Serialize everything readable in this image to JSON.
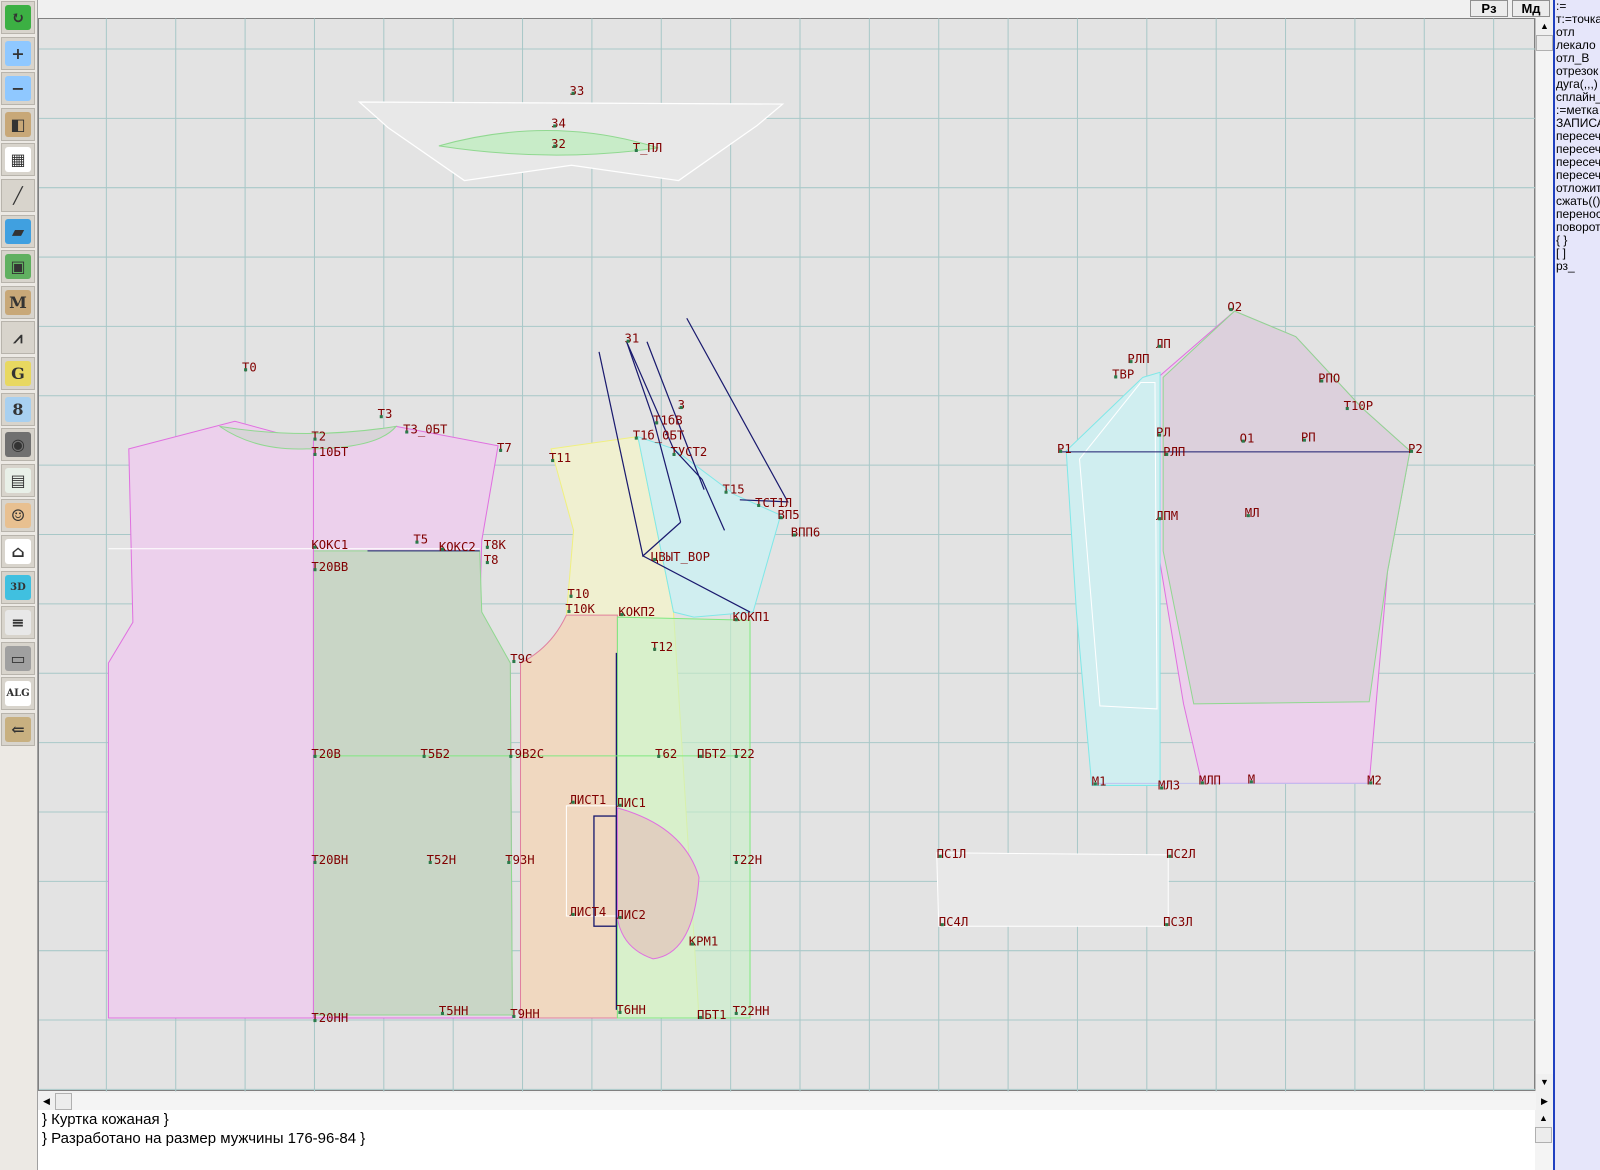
{
  "toolbar": {
    "items": [
      {
        "icon": "refresh-icon",
        "glyph": "↻",
        "color": "#3cb043"
      },
      {
        "icon": "zoom-in-icon",
        "glyph": "+",
        "color": "#8fc8ff"
      },
      {
        "icon": "zoom-out-icon",
        "glyph": "−",
        "color": "#8fc8ff"
      },
      {
        "icon": "pattern-view-icon",
        "glyph": "◧",
        "color": "#c8a878"
      },
      {
        "icon": "grid-icon",
        "glyph": "▦",
        "color": "#ffffff"
      },
      {
        "icon": "line-segment-icon",
        "glyph": "╱",
        "color": "#d8d4cc"
      },
      {
        "icon": "map-icon",
        "glyph": "▰",
        "color": "#40a0e0"
      },
      {
        "icon": "pattern-piece-icon",
        "glyph": "▣",
        "color": "#60b060"
      },
      {
        "icon": "measurements-icon",
        "glyph": "M",
        "color": "#c8a878"
      },
      {
        "icon": "compass-icon",
        "glyph": "⩘",
        "color": "#d8d4cc"
      },
      {
        "icon": "grading-icon",
        "glyph": "G",
        "color": "#e8d860"
      },
      {
        "icon": "ruler-icon",
        "glyph": "8",
        "color": "#a8d0f0"
      },
      {
        "icon": "camera-icon",
        "glyph": "◉",
        "color": "#707070"
      },
      {
        "icon": "spreadsheet-icon",
        "glyph": "▤",
        "color": "#e8f0e8"
      },
      {
        "icon": "user-photo-icon",
        "glyph": "☺",
        "color": "#e8c090"
      },
      {
        "icon": "jacket-icon",
        "glyph": "⌂",
        "color": "#ffffff"
      },
      {
        "icon": "3d-view-icon",
        "glyph": "3D",
        "color": "#40c0e0"
      },
      {
        "icon": "text-list-icon",
        "glyph": "≡",
        "color": "#e8e8e8"
      },
      {
        "icon": "library-icon",
        "glyph": "▭",
        "color": "#a0a0a0"
      },
      {
        "icon": "algorithm-icon",
        "glyph": "ALG",
        "color": "#ffffff"
      },
      {
        "icon": "exit-icon",
        "glyph": "⇐",
        "color": "#c8b080"
      }
    ]
  },
  "topbar": {
    "rz_label": "Рз",
    "md_label": "Мд"
  },
  "command_panel": {
    "items": [
      ":=",
      "т:=точка",
      "отл",
      "лекало",
      "отл_В",
      "отрезок",
      "дуга(,,,)",
      "сплайн_",
      ":=метка",
      "ЗАПИСА",
      "пересеч",
      "пересеч",
      "пересеч",
      "пересеч",
      "отложит",
      "сжать(()",
      "перенос",
      "поворот",
      "{ }",
      "[ ]",
      "рз_"
    ]
  },
  "comments": {
    "line1": "} Куртка кожаная  }",
    "line2": "} Разработано на размер мужчины 176-96-84  }"
  },
  "drawing": {
    "colors": {
      "label": "#800000",
      "back": "#ecd0ec",
      "front": "#f0f0d0",
      "yoke": "#d0eef0",
      "grid": "#a8c8c8",
      "construction": "#1a1a6e"
    },
    "labels": [
      "З3",
      "З4",
      "З2",
      "Т_ПЛ",
      "Т0",
      "Т2",
      "Т3",
      "Т3_0БТ",
      "Т10БТ",
      "Т7",
      "КОКС1",
      "Т5",
      "КОКС2",
      "Т8К",
      "Т8",
      "Т20ВВ",
      "Т11",
      "З1",
      "З",
      "Т1бВ",
      "Т1б_0БТ",
      "ТУСТ2",
      "Т15",
      "ТСТ1Л",
      "ВП5",
      "ВПП6",
      "ЦВЫТ_ВОР",
      "Т10",
      "Т10К",
      "КОКП2",
      "КОКП1",
      "Т12",
      "Т9С",
      "Т20В",
      "Т5Б2",
      "Т9В2С",
      "Т62",
      "ПБТ2",
      "Т22",
      "ЛИСТ1",
      "ЛИС1",
      "Т20ВН",
      "Т52Н",
      "Т9ЗН",
      "Т22Н",
      "ЛИСТ4",
      "ЛИС2",
      "КРМ1",
      "Т20НН",
      "Т5НН",
      "Т9НН",
      "Т6НН",
      "ПБТ1",
      "Т22НН",
      "О2",
      "ЛП",
      "РЛП",
      "ТВР",
      "РПО",
      "Т10Р",
      "Р1",
      "РЛ",
      "РЛП",
      "О1",
      "РП",
      "Р2",
      "ЛПМ",
      "МЛ",
      "М1",
      "МЛЗ",
      "МЛП",
      "М",
      "М2",
      "ПС1Л",
      "ПС2Л",
      "ПС4Л",
      "ПС3Л"
    ]
  }
}
